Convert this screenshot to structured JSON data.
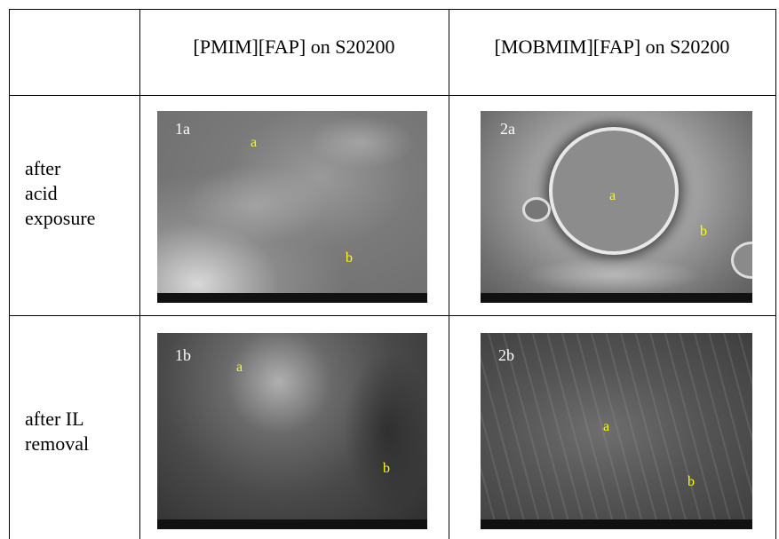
{
  "table": {
    "columns": [
      "[PMIM][FAP] on S20200",
      "[MOBMIM][FAP] on S20200"
    ],
    "rows": [
      {
        "label": [
          "after",
          "acid",
          "exposure"
        ],
        "images": [
          {
            "id": "1a",
            "labels": [
              "a",
              "b"
            ]
          },
          {
            "id": "2a",
            "labels": [
              "a",
              "b"
            ]
          }
        ]
      },
      {
        "label": [
          "after IL",
          "removal"
        ],
        "images": [
          {
            "id": "1b",
            "labels": [
              "a",
              "b"
            ]
          },
          {
            "id": "2b",
            "labels": [
              "a",
              "b"
            ]
          }
        ]
      }
    ]
  }
}
